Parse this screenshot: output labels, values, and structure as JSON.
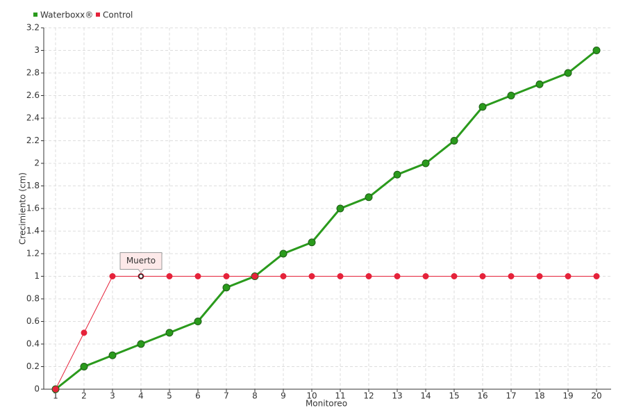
{
  "chart_data": {
    "type": "line",
    "x_label": "Monitoreo",
    "y_label": "Crecimiento (cm)",
    "categories": [
      "1",
      "2",
      "3",
      "4",
      "5",
      "6",
      "7",
      "8",
      "9",
      "10",
      "11",
      "12",
      "13",
      "14",
      "15",
      "16",
      "17",
      "18",
      "19",
      "20"
    ],
    "series": [
      {
        "name": "Waterboxx®",
        "color": "#2a9a1c",
        "values": [
          0,
          0.2,
          0.3,
          0.4,
          0.5,
          0.6,
          0.9,
          1.0,
          1.2,
          1.3,
          1.6,
          1.7,
          1.9,
          2.0,
          2.2,
          2.5,
          2.6,
          2.7,
          2.8,
          3.0
        ]
      },
      {
        "name": "Control",
        "color": "#e5223a",
        "values": [
          0,
          0.5,
          1,
          1,
          1,
          1,
          1,
          1,
          1,
          1,
          1,
          1,
          1,
          1,
          1,
          1,
          1,
          1,
          1,
          1
        ]
      }
    ],
    "ylim": [
      0,
      3.2
    ],
    "yticks": [
      0,
      0.2,
      0.4,
      0.6,
      0.8,
      1,
      1.2,
      1.4,
      1.6,
      1.8,
      2,
      2.2,
      2.4,
      2.6,
      2.8,
      3,
      3.2
    ],
    "grid": true,
    "legend": "top-left",
    "annotations": [
      {
        "text": "Muerto",
        "series": 1,
        "index": 3
      }
    ]
  }
}
